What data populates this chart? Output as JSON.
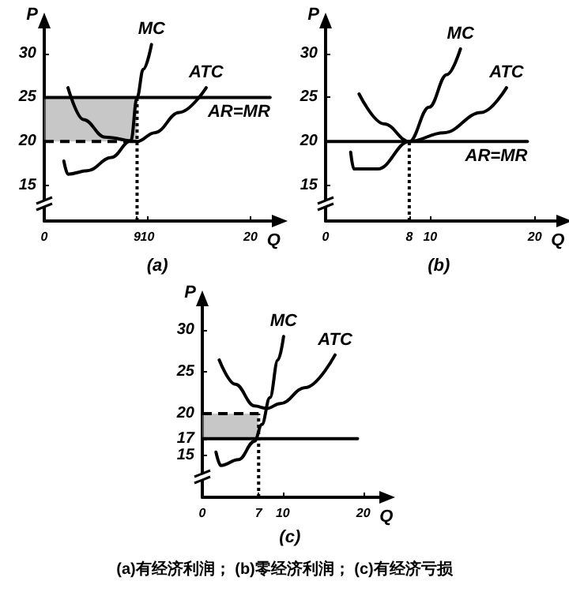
{
  "chart_data": [
    {
      "type": "line",
      "title": "(a)",
      "xlabel": "Q",
      "ylabel": "P",
      "xlim": [
        0,
        22
      ],
      "xticks": [
        0,
        9,
        10,
        20
      ],
      "ylim": [
        11,
        33
      ],
      "yticks": [
        15,
        20,
        25,
        30
      ],
      "series": [
        {
          "name": "MC",
          "color": "#000000",
          "x": [
            1.9,
            2.3,
            4.2,
            6.5,
            8.4,
            9,
            9.6,
            10.4
          ],
          "values": [
            17.8,
            16.3,
            16.7,
            18.2,
            20.1,
            25,
            28.2,
            31
          ]
        },
        {
          "name": "ATC",
          "color": "#000000",
          "x": [
            2.3,
            3.8,
            5.9,
            9,
            10.7,
            13.1,
            15.7
          ],
          "values": [
            26.1,
            22.5,
            20.5,
            20,
            21,
            23.3,
            26.1
          ]
        },
        {
          "name": "AR=MR",
          "color": "#000000",
          "x": [
            0,
            21.9
          ],
          "values": [
            25,
            25
          ]
        },
        {
          "color": "#000000",
          "line_style": "dashed",
          "x": [
            0,
            9
          ],
          "values": [
            20,
            20
          ],
          "lower": [
            20,
            20
          ],
          "upper": [
            25,
            25
          ]
        },
        {
          "color": "#000000",
          "line_style": "dotted",
          "x": [
            9,
            9
          ],
          "values": [
            11,
            25
          ]
        }
      ]
    },
    {
      "type": "line",
      "title": "(b)",
      "xlabel": "Q",
      "ylabel": "P",
      "xlim": [
        0,
        22
      ],
      "xticks": [
        0,
        8,
        10,
        20
      ],
      "ylim": [
        11,
        33
      ],
      "yticks": [
        15,
        20,
        25,
        30
      ],
      "series": [
        {
          "name": "MC",
          "color": "#000000",
          "x": [
            2.4,
            2.7,
            5,
            8,
            9.9,
            11.6,
            12.9
          ],
          "values": [
            18.8,
            16.9,
            16.9,
            20,
            23.9,
            27.6,
            30.5
          ]
        },
        {
          "name": "ATC",
          "color": "#000000",
          "x": [
            3.2,
            5.6,
            8,
            11.3,
            14.9,
            17.3
          ],
          "values": [
            25.4,
            22,
            20,
            21,
            23.3,
            26.1
          ]
        },
        {
          "name": "AR=MR",
          "color": "#000000",
          "x": [
            0,
            19.3
          ],
          "values": [
            20,
            20
          ]
        },
        {
          "color": "#000000",
          "line_style": "dotted",
          "x": [
            8,
            8
          ],
          "values": [
            11,
            20
          ]
        }
      ]
    },
    {
      "type": "line",
      "title": "(c)",
      "xlabel": "Q",
      "ylabel": "P",
      "xlim": [
        0,
        22
      ],
      "xticks": [
        0,
        7,
        10,
        20
      ],
      "ylim": [
        10,
        33
      ],
      "yticks": [
        15,
        17,
        20,
        25,
        30
      ],
      "annotations": [
        "(a)有经济利润； (b)零经济利润； (c)有经济亏损"
      ],
      "series": [
        {
          "name": "MC",
          "color": "#000000",
          "x": [
            1.7,
            2.3,
            4.5,
            6.5,
            7.4,
            8.4,
            9.4,
            10.1
          ],
          "values": [
            15.4,
            13.8,
            14.5,
            16.7,
            18.7,
            21.9,
            26.4,
            29.2
          ]
        },
        {
          "name": "ATC",
          "color": "#000000",
          "x": [
            2.1,
            4.1,
            6.5,
            8,
            9.7,
            12.8,
            16.5
          ],
          "values": [
            26.4,
            23.5,
            20.9,
            20.6,
            21.2,
            23.1,
            27
          ]
        },
        {
          "color": "#000000",
          "x": [
            0,
            19.3
          ],
          "values": [
            17,
            17
          ]
        },
        {
          "color": "#000000",
          "line_style": "dashed",
          "x": [
            0,
            7
          ],
          "values": [
            20,
            20
          ],
          "lower": [
            17,
            17
          ],
          "upper": [
            20,
            20
          ]
        },
        {
          "color": "#000000",
          "line_style": "dotted",
          "x": [
            7,
            7
          ],
          "values": [
            10,
            20
          ]
        }
      ]
    }
  ]
}
